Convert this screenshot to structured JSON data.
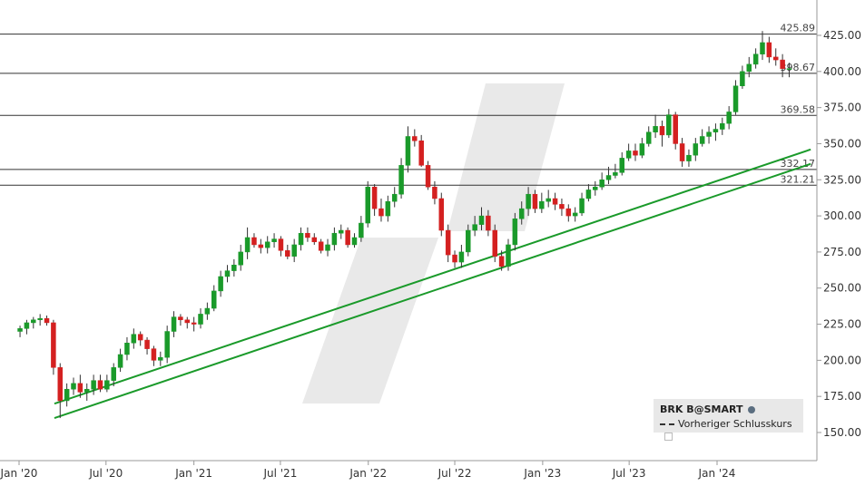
{
  "chart_data": {
    "type": "candlestick",
    "title": "",
    "xlabel": "",
    "ylabel": "",
    "ylim": [
      140,
      435
    ],
    "y_ticks": [
      "150.00",
      "175.00",
      "200.00",
      "225.00",
      "250.00",
      "275.00",
      "300.00",
      "325.00",
      "350.00",
      "375.00",
      "400.00",
      "425.00"
    ],
    "x_ticks": [
      "Jan '20",
      "Jul '20",
      "Jan '21",
      "Jul '21",
      "Jan '22",
      "Jul '22",
      "Jan '23",
      "Jul '23",
      "Jan '24"
    ],
    "x_tick_dates": [
      "2020-01-01",
      "2020-07-01",
      "2021-01-01",
      "2021-07-01",
      "2022-01-01",
      "2022-07-01",
      "2023-01-01",
      "2023-07-01",
      "2024-01-01"
    ],
    "horizontal_levels": [
      {
        "value": 425.89,
        "label": "425.89"
      },
      {
        "value": 398.67,
        "label": "398.67"
      },
      {
        "value": 369.58,
        "label": "369.58"
      },
      {
        "value": 332.17,
        "label": "332.17"
      },
      {
        "value": 321.21,
        "label": "321.21"
      }
    ],
    "trend_lines": [
      {
        "start": [
          "2020-03-15",
          170
        ],
        "end": [
          "2024-07-15",
          346
        ]
      },
      {
        "start": [
          "2020-03-15",
          160
        ],
        "end": [
          "2024-07-15",
          336
        ]
      }
    ],
    "series": [
      {
        "dates": [
          "2020-01-03",
          "2020-01-17",
          "2020-01-31",
          "2020-02-14",
          "2020-02-28",
          "2020-03-13",
          "2020-03-27",
          "2020-04-10",
          "2020-04-24",
          "2020-05-08",
          "2020-05-22",
          "2020-06-05",
          "2020-06-19",
          "2020-07-03",
          "2020-07-17",
          "2020-07-31",
          "2020-08-14",
          "2020-08-28",
          "2020-09-11",
          "2020-09-25",
          "2020-10-09",
          "2020-10-23",
          "2020-11-06",
          "2020-11-20",
          "2020-12-04",
          "2020-12-18",
          "2021-01-01",
          "2021-01-15",
          "2021-01-29",
          "2021-02-12",
          "2021-02-26",
          "2021-03-12",
          "2021-03-26",
          "2021-04-09",
          "2021-04-23",
          "2021-05-07",
          "2021-05-21",
          "2021-06-04",
          "2021-06-18",
          "2021-07-02",
          "2021-07-16",
          "2021-07-30",
          "2021-08-13",
          "2021-08-27",
          "2021-09-10",
          "2021-09-24",
          "2021-10-08",
          "2021-10-22",
          "2021-11-05",
          "2021-11-19",
          "2021-12-03",
          "2021-12-17",
          "2021-12-31",
          "2022-01-14",
          "2022-01-28",
          "2022-02-11",
          "2022-02-25",
          "2022-03-11",
          "2022-03-25",
          "2022-04-08",
          "2022-04-22",
          "2022-05-06",
          "2022-05-20",
          "2022-06-03",
          "2022-06-17",
          "2022-07-01",
          "2022-07-15",
          "2022-07-29",
          "2022-08-12",
          "2022-08-26",
          "2022-09-09",
          "2022-09-23",
          "2022-10-07",
          "2022-10-21",
          "2022-11-04",
          "2022-11-18",
          "2022-12-02",
          "2022-12-16",
          "2022-12-30",
          "2023-01-13",
          "2023-01-27",
          "2023-02-10",
          "2023-02-24",
          "2023-03-10",
          "2023-03-24",
          "2023-04-07",
          "2023-04-21",
          "2023-05-05",
          "2023-05-19",
          "2023-06-02",
          "2023-06-16",
          "2023-06-30",
          "2023-07-14",
          "2023-07-28",
          "2023-08-11",
          "2023-08-25",
          "2023-09-08",
          "2023-09-22",
          "2023-10-06",
          "2023-10-20",
          "2023-11-03",
          "2023-11-17",
          "2023-12-01",
          "2023-12-15",
          "2023-12-29",
          "2024-01-12",
          "2024-01-26",
          "2024-02-09",
          "2024-02-23",
          "2024-03-08",
          "2024-03-22",
          "2024-04-05",
          "2024-04-19",
          "2024-05-03",
          "2024-05-17",
          "2024-05-31"
        ],
        "open": [
          220,
          222,
          226,
          228,
          229,
          226,
          195,
          172,
          180,
          184,
          178,
          180,
          186,
          180,
          186,
          195,
          204,
          212,
          218,
          214,
          208,
          200,
          202,
          220,
          230,
          228,
          226,
          225,
          232,
          236,
          248,
          258,
          262,
          266,
          275,
          285,
          280,
          278,
          282,
          284,
          276,
          272,
          280,
          288,
          285,
          282,
          276,
          280,
          288,
          290,
          280,
          285,
          295,
          320,
          305,
          300,
          310,
          315,
          335,
          355,
          352,
          335,
          320,
          312,
          290,
          273,
          268,
          275,
          290,
          294,
          300,
          290,
          272,
          265,
          280,
          298,
          305,
          315,
          305,
          310,
          312,
          308,
          305,
          300,
          302,
          312,
          318,
          320,
          325,
          328,
          330,
          340,
          345,
          342,
          350,
          358,
          362,
          356,
          370,
          350,
          338,
          342,
          350,
          355,
          358,
          360,
          364,
          372,
          390,
          400,
          405,
          412,
          420,
          410,
          408,
          402
        ],
        "close": [
          222,
          226,
          228,
          229,
          226,
          195,
          172,
          180,
          184,
          178,
          180,
          186,
          180,
          186,
          195,
          204,
          212,
          218,
          214,
          208,
          200,
          202,
          220,
          230,
          228,
          226,
          225,
          232,
          236,
          248,
          258,
          262,
          266,
          275,
          285,
          280,
          278,
          282,
          284,
          276,
          272,
          280,
          288,
          285,
          282,
          276,
          280,
          288,
          290,
          280,
          285,
          295,
          320,
          305,
          300,
          310,
          315,
          335,
          355,
          352,
          335,
          320,
          312,
          290,
          273,
          268,
          275,
          290,
          294,
          300,
          290,
          272,
          265,
          280,
          298,
          305,
          315,
          305,
          310,
          312,
          308,
          305,
          300,
          302,
          312,
          318,
          320,
          325,
          328,
          330,
          340,
          345,
          342,
          350,
          358,
          362,
          356,
          370,
          350,
          338,
          342,
          350,
          355,
          358,
          360,
          364,
          372,
          390,
          400,
          405,
          412,
          420,
          410,
          408,
          402,
          402
        ],
        "high": [
          224,
          228,
          230,
          232,
          231,
          228,
          198,
          184,
          188,
          190,
          184,
          190,
          190,
          190,
          198,
          208,
          216,
          222,
          220,
          216,
          210,
          206,
          224,
          234,
          232,
          230,
          230,
          236,
          240,
          252,
          262,
          266,
          270,
          280,
          292,
          288,
          284,
          286,
          288,
          286,
          280,
          284,
          292,
          292,
          288,
          284,
          284,
          292,
          294,
          292,
          288,
          300,
          324,
          322,
          312,
          314,
          320,
          340,
          362,
          360,
          356,
          338,
          324,
          316,
          294,
          276,
          280,
          294,
          300,
          306,
          304,
          294,
          276,
          284,
          302,
          310,
          320,
          318,
          316,
          318,
          316,
          312,
          308,
          306,
          316,
          322,
          324,
          330,
          334,
          336,
          344,
          350,
          350,
          354,
          362,
          370,
          366,
          374,
          372,
          354,
          346,
          354,
          360,
          362,
          364,
          368,
          376,
          394,
          404,
          410,
          416,
          428,
          424,
          416,
          412,
          406
        ],
        "low": [
          216,
          218,
          222,
          224,
          224,
          190,
          160,
          168,
          176,
          174,
          172,
          176,
          178,
          178,
          182,
          192,
          200,
          208,
          210,
          204,
          196,
          196,
          198,
          216,
          224,
          222,
          220,
          222,
          228,
          234,
          244,
          254,
          258,
          262,
          270,
          278,
          274,
          274,
          278,
          272,
          270,
          268,
          276,
          282,
          280,
          274,
          272,
          276,
          284,
          278,
          278,
          282,
          292,
          300,
          296,
          296,
          306,
          312,
          330,
          348,
          334,
          318,
          308,
          286,
          268,
          264,
          264,
          272,
          286,
          290,
          286,
          268,
          262,
          262,
          276,
          294,
          300,
          302,
          302,
          306,
          304,
          300,
          296,
          296,
          300,
          310,
          314,
          318,
          322,
          326,
          328,
          338,
          338,
          340,
          348,
          354,
          348,
          354,
          346,
          334,
          334,
          338,
          348,
          350,
          352,
          356,
          360,
          370,
          388,
          396,
          402,
          408,
          406,
          404,
          396,
          396
        ]
      }
    ]
  },
  "legend": {
    "title": "BRK B@SMART",
    "icon": "info-circle-icon",
    "item": "Vorheriger Schlusskurs"
  },
  "colors": {
    "up": "#1a9a2a",
    "down": "#d42020",
    "trend": "#1a9a2a",
    "level": "#333333",
    "watermark": "#e6e6e6"
  }
}
